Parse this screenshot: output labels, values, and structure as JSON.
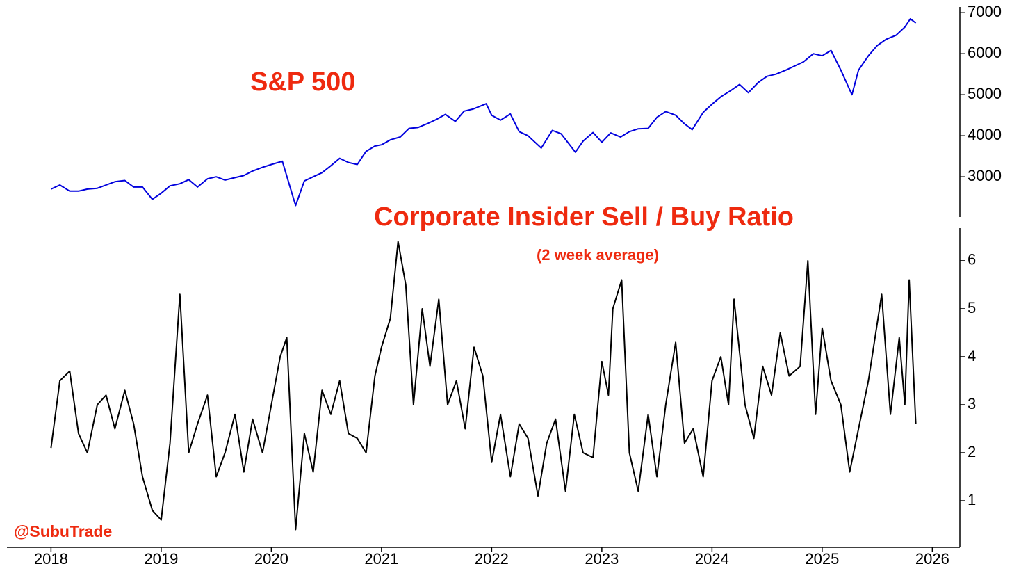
{
  "credit": "@SubuTrade",
  "chart_data": [
    {
      "type": "line",
      "title": "S&P 500",
      "color": "#0000dd",
      "x": [
        2018.0,
        2018.08,
        2018.17,
        2018.25,
        2018.33,
        2018.42,
        2018.5,
        2018.58,
        2018.67,
        2018.75,
        2018.83,
        2018.92,
        2019.0,
        2019.08,
        2019.17,
        2019.25,
        2019.33,
        2019.42,
        2019.5,
        2019.58,
        2019.67,
        2019.75,
        2019.83,
        2019.92,
        2020.0,
        2020.1,
        2020.22,
        2020.3,
        2020.38,
        2020.46,
        2020.54,
        2020.62,
        2020.7,
        2020.78,
        2020.86,
        2020.94,
        2021.0,
        2021.08,
        2021.17,
        2021.25,
        2021.33,
        2021.42,
        2021.5,
        2021.58,
        2021.67,
        2021.75,
        2021.83,
        2021.95,
        2022.0,
        2022.08,
        2022.17,
        2022.25,
        2022.33,
        2022.45,
        2022.55,
        2022.63,
        2022.76,
        2022.83,
        2022.92,
        2023.0,
        2023.08,
        2023.17,
        2023.25,
        2023.33,
        2023.42,
        2023.5,
        2023.58,
        2023.67,
        2023.75,
        2023.82,
        2023.92,
        2024.0,
        2024.08,
        2024.17,
        2024.25,
        2024.33,
        2024.42,
        2024.5,
        2024.58,
        2024.67,
        2024.75,
        2024.83,
        2024.92,
        2025.0,
        2025.08,
        2025.17,
        2025.27,
        2025.33,
        2025.42,
        2025.5,
        2025.58,
        2025.67,
        2025.75,
        2025.8,
        2025.85
      ],
      "values": [
        2700,
        2800,
        2650,
        2650,
        2700,
        2720,
        2800,
        2880,
        2910,
        2750,
        2750,
        2450,
        2600,
        2780,
        2830,
        2930,
        2750,
        2950,
        3000,
        2920,
        2980,
        3030,
        3140,
        3230,
        3300,
        3380,
        2300,
        2900,
        3000,
        3100,
        3270,
        3450,
        3350,
        3300,
        3620,
        3750,
        3780,
        3900,
        3970,
        4180,
        4200,
        4300,
        4400,
        4520,
        4350,
        4600,
        4650,
        4780,
        4500,
        4380,
        4530,
        4100,
        4000,
        3700,
        4130,
        4050,
        3600,
        3870,
        4080,
        3840,
        4070,
        3970,
        4100,
        4170,
        4180,
        4450,
        4590,
        4500,
        4290,
        4150,
        4570,
        4770,
        4950,
        5100,
        5250,
        5050,
        5300,
        5450,
        5500,
        5600,
        5700,
        5800,
        6000,
        5950,
        6080,
        5600,
        5000,
        5600,
        5950,
        6200,
        6350,
        6450,
        6650,
        6850,
        6750
      ],
      "xlim": [
        2017.6,
        2026.25
      ],
      "ylim": [
        2020,
        7140
      ],
      "yticks": [
        3000,
        4000,
        5000,
        6000,
        7000
      ]
    },
    {
      "type": "line",
      "title": "Corporate Insider Sell / Buy Ratio",
      "subtitle": "(2 week average)",
      "color": "#000000",
      "x": [
        2018.0,
        2018.08,
        2018.17,
        2018.25,
        2018.33,
        2018.42,
        2018.5,
        2018.58,
        2018.67,
        2018.75,
        2018.83,
        2018.92,
        2019.0,
        2019.08,
        2019.17,
        2019.25,
        2019.33,
        2019.42,
        2019.5,
        2019.58,
        2019.67,
        2019.75,
        2019.83,
        2019.92,
        2020.0,
        2020.08,
        2020.14,
        2020.22,
        2020.3,
        2020.38,
        2020.46,
        2020.54,
        2020.62,
        2020.7,
        2020.78,
        2020.86,
        2020.94,
        2021.0,
        2021.08,
        2021.15,
        2021.22,
        2021.29,
        2021.37,
        2021.44,
        2021.52,
        2021.6,
        2021.68,
        2021.76,
        2021.84,
        2021.92,
        2022.0,
        2022.08,
        2022.17,
        2022.25,
        2022.33,
        2022.42,
        2022.5,
        2022.58,
        2022.67,
        2022.75,
        2022.83,
        2022.92,
        2023.0,
        2023.06,
        2023.1,
        2023.18,
        2023.25,
        2023.33,
        2023.42,
        2023.5,
        2023.58,
        2023.67,
        2023.75,
        2023.83,
        2023.92,
        2024.0,
        2024.08,
        2024.15,
        2024.2,
        2024.3,
        2024.38,
        2024.46,
        2024.54,
        2024.62,
        2024.7,
        2024.8,
        2024.87,
        2024.94,
        2025.0,
        2025.08,
        2025.17,
        2025.25,
        2025.33,
        2025.42,
        2025.54,
        2025.62,
        2025.7,
        2025.75,
        2025.79,
        2025.83,
        2025.85
      ],
      "values": [
        2.1,
        3.5,
        3.7,
        2.4,
        2.0,
        3.0,
        3.2,
        2.5,
        3.3,
        2.6,
        1.5,
        0.8,
        0.6,
        2.2,
        5.3,
        2.0,
        2.6,
        3.2,
        1.5,
        2.0,
        2.8,
        1.6,
        2.7,
        2.0,
        3.0,
        4.0,
        4.4,
        0.4,
        2.4,
        1.6,
        3.3,
        2.8,
        3.5,
        2.4,
        2.3,
        2.0,
        3.6,
        4.2,
        4.8,
        6.4,
        5.5,
        3.0,
        5.0,
        3.8,
        5.2,
        3.0,
        3.5,
        2.5,
        4.2,
        3.6,
        1.8,
        2.8,
        1.5,
        2.6,
        2.3,
        1.1,
        2.2,
        2.7,
        1.2,
        2.8,
        2.0,
        1.9,
        3.9,
        3.2,
        5.0,
        5.6,
        2.0,
        1.2,
        2.8,
        1.5,
        3.0,
        4.3,
        2.2,
        2.5,
        1.5,
        3.5,
        4.0,
        3.0,
        5.2,
        3.0,
        2.3,
        3.8,
        3.2,
        4.5,
        3.6,
        3.8,
        6.0,
        2.8,
        4.6,
        3.5,
        3.0,
        1.6,
        2.5,
        3.5,
        5.3,
        2.8,
        4.4,
        3.0,
        5.6,
        3.6,
        2.6
      ],
      "xlim": [
        2017.6,
        2026.25
      ],
      "ylim": [
        0.03,
        6.68
      ],
      "yticks": [
        1,
        2,
        3,
        4,
        5,
        6
      ],
      "xticks": [
        2018,
        2019,
        2020,
        2021,
        2022,
        2023,
        2024,
        2025,
        2026
      ]
    }
  ]
}
